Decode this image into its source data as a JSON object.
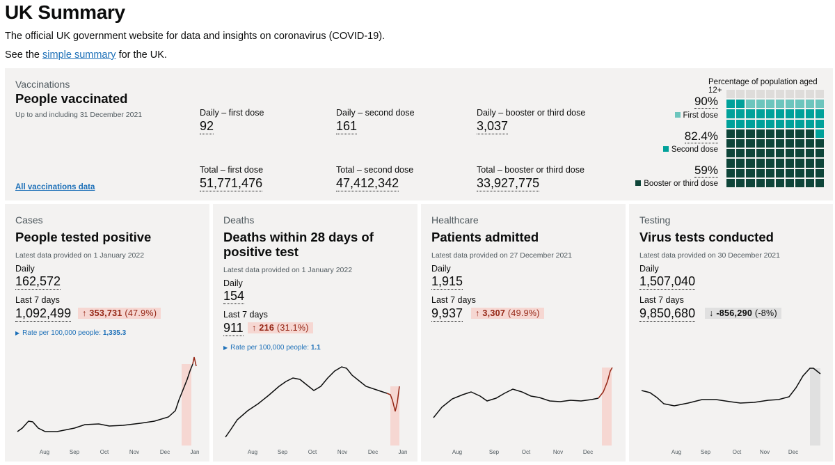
{
  "header": {
    "title": "UK Summary",
    "intro": "The official UK government website for data and insights on coronavirus (COVID-19).",
    "see_prefix": "See the ",
    "link_text": "simple summary",
    "see_suffix": " for the UK."
  },
  "vaccinations": {
    "caption": "Vaccinations",
    "title": "People vaccinated",
    "date_note": "Up to and including 31 December 2021",
    "link": "All vaccinations data",
    "metrics": [
      {
        "label": "Daily – first dose",
        "value": "92"
      },
      {
        "label": "Daily – second dose",
        "value": "161"
      },
      {
        "label": "Daily – booster or third dose",
        "value": "3,037"
      },
      {
        "label": "Total – first dose",
        "value": "51,771,476"
      },
      {
        "label": "Total – second dose",
        "value": "47,412,342"
      },
      {
        "label": "Total – booster or third dose",
        "value": "33,927,775"
      }
    ],
    "waffle": {
      "title": "Percentage of population aged 12+",
      "first_dose_pct": "90%",
      "first_dose_label": "First dose",
      "second_dose_pct": "82.4%",
      "second_dose_label": "Second dose",
      "booster_pct": "59%",
      "booster_label": "Booster or third dose",
      "first_dose_value": 90,
      "second_dose_value": 82.4,
      "booster_value": 59,
      "colors": {
        "first": "#6cc5bd",
        "second": "#00a19a",
        "booster": "#0e4539",
        "empty": "#dedcda"
      }
    }
  },
  "cards": [
    {
      "caption": "Cases",
      "title": "People tested positive",
      "date_note": "Latest data provided on 1 January 2022",
      "daily_label": "Daily",
      "daily_value": "162,572",
      "week_label": "Last 7 days",
      "week_value": "1,092,499",
      "change_arrow": "↑",
      "change_value": "353,731",
      "change_pct": "(47.9%)",
      "change_dir": "up",
      "rate_label": "Rate per 100,000 people:",
      "rate_value": "1,335.3",
      "axis_ticks": [
        "Aug",
        "Sep",
        "Oct",
        "Nov",
        "Dec",
        "Jan"
      ]
    },
    {
      "caption": "Deaths",
      "title": "Deaths within 28 days of positive test",
      "date_note": "Latest data provided on 1 January 2022",
      "daily_label": "Daily",
      "daily_value": "154",
      "week_label": "Last 7 days",
      "week_value": "911",
      "change_arrow": "↑",
      "change_value": "216",
      "change_pct": "(31.1%)",
      "change_dir": "up",
      "rate_label": "Rate per 100,000 people:",
      "rate_value": "1.1",
      "axis_ticks": [
        "Aug",
        "Sep",
        "Oct",
        "Nov",
        "Dec",
        "Jan"
      ]
    },
    {
      "caption": "Healthcare",
      "title": "Patients admitted",
      "date_note": "Latest data provided on 27 December 2021",
      "daily_label": "Daily",
      "daily_value": "1,915",
      "week_label": "Last 7 days",
      "week_value": "9,937",
      "change_arrow": "↑",
      "change_value": "3,307",
      "change_pct": "(49.9%)",
      "change_dir": "up",
      "axis_ticks": [
        "Aug",
        "Sep",
        "Oct",
        "Nov",
        "Dec"
      ]
    },
    {
      "caption": "Testing",
      "title": "Virus tests conducted",
      "date_note": "Latest data provided on 30 December 2021",
      "daily_label": "Daily",
      "daily_value": "1,507,040",
      "week_label": "Last 7 days",
      "week_value": "9,850,680",
      "change_arrow": "↓",
      "change_value": "-856,290",
      "change_pct": "(-8%)",
      "change_dir": "down",
      "axis_ticks": [
        "Aug",
        "Sep",
        "Oct",
        "Nov",
        "Dec"
      ]
    }
  ],
  "colors": {
    "line": "#0b0c0c",
    "up_line": "#942514",
    "up_fill": "#f6d7d2",
    "down_fill": "#e0e0e0"
  }
}
